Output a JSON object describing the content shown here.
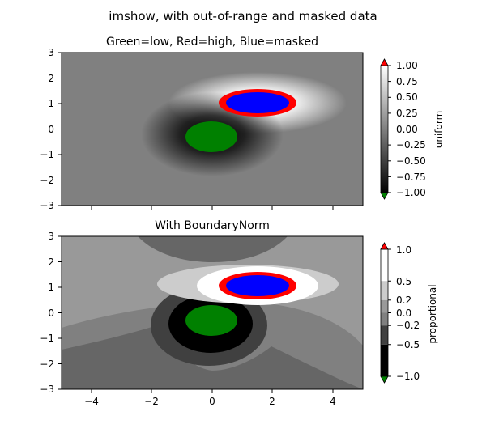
{
  "suptitle": "imshow, with out-of-range and masked data",
  "colors": {
    "low": "#008000",
    "high": "#ff0000",
    "masked": "#0000ff"
  },
  "chart_data": [
    {
      "type": "heatmap",
      "title": "Green=low, Red=high, Blue=masked",
      "xlim": [
        -5,
        5
      ],
      "ylim": [
        -3,
        3
      ],
      "yticks": [
        3,
        2,
        1,
        0,
        -1,
        -2,
        -3
      ],
      "xticks": [
        -4,
        -2,
        0,
        2,
        4
      ],
      "xtick_labels_shown": false,
      "colormap": "gray",
      "colorbar": {
        "label": "uniform",
        "ticks": [
          1.0,
          0.75,
          0.5,
          0.25,
          0.0,
          -0.25,
          -0.5,
          -0.75,
          -1.0
        ],
        "tick_labels": [
          "1.00",
          "0.75",
          "0.50",
          "0.25",
          "0.00",
          "−0.25",
          "−0.50",
          "−0.75",
          "−1.00"
        ],
        "extend": "both"
      },
      "masked_region": {
        "center": [
          1.5,
          1.0
        ],
        "color": "blue"
      },
      "high_region": {
        "center": [
          1.5,
          1.0
        ],
        "color": "red"
      },
      "low_region": {
        "center": [
          0.0,
          -0.3
        ],
        "color": "green"
      }
    },
    {
      "type": "heatmap",
      "title": "With BoundaryNorm",
      "xlim": [
        -5,
        5
      ],
      "ylim": [
        -3,
        3
      ],
      "yticks": [
        3,
        2,
        1,
        0,
        -1,
        -2,
        -3
      ],
      "xticks": [
        -4,
        -2,
        0,
        2,
        4
      ],
      "xtick_labels": [
        "−4",
        "−2",
        "0",
        "2",
        "4"
      ],
      "colormap": "gray",
      "boundaries": [
        -1.0,
        -0.5,
        -0.2,
        0.0,
        0.2,
        0.5,
        1.0
      ],
      "colorbar": {
        "label": "proportional",
        "ticks": [
          1.0,
          0.5,
          0.2,
          0.0,
          -0.2,
          -0.5,
          -1.0
        ],
        "tick_labels": [
          "1.0",
          "0.5",
          "0.2",
          "0.0",
          "−0.2",
          "−0.5",
          "−1.0"
        ],
        "extend": "both"
      }
    }
  ],
  "top": {
    "title": "Green=low, Red=high, Blue=masked",
    "yticks": [
      "3",
      "2",
      "1",
      "0",
      "−1",
      "−2",
      "−3"
    ],
    "cbar_label": "uniform",
    "cbar_ticks": [
      "1.00",
      "0.75",
      "0.50",
      "0.25",
      "0.00",
      "−0.25",
      "−0.50",
      "−0.75",
      "−1.00"
    ]
  },
  "bottom": {
    "title": "With BoundaryNorm",
    "yticks": [
      "3",
      "2",
      "1",
      "0",
      "−1",
      "−2",
      "−3"
    ],
    "xticks": [
      "−4",
      "−2",
      "0",
      "2",
      "4"
    ],
    "cbar_label": "proportional",
    "cbar_ticks": [
      "1.0",
      "0.5",
      "0.2",
      "0.0",
      "−0.2",
      "−0.5",
      "−1.0"
    ]
  }
}
